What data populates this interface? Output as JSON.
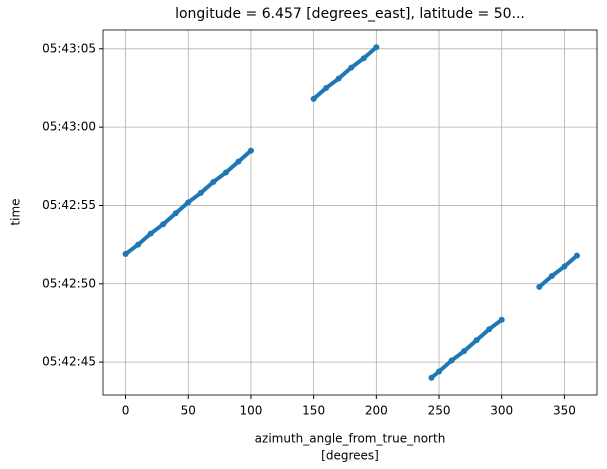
{
  "chart_data": {
    "type": "line",
    "title": "longitude = 6.457 [degrees_east], latitude = 50...",
    "xlabel": [
      "azimuth_angle_from_true_north",
      "[degrees]"
    ],
    "ylabel": "time",
    "x": [
      0,
      10,
      20,
      30,
      40,
      50,
      60,
      70,
      80,
      90,
      100,
      null,
      150,
      160,
      170,
      180,
      190,
      200,
      null,
      244,
      250,
      260,
      270,
      280,
      290,
      300,
      null,
      330,
      340,
      350,
      360
    ],
    "series": [
      {
        "color": "#1f77b4",
        "values": [
          20571.9,
          20572.5,
          20573.2,
          20573.8,
          20574.5,
          20575.2,
          20575.8,
          20576.5,
          20577.1,
          20577.8,
          20578.5,
          null,
          20581.8,
          20582.5,
          20583.1,
          20583.8,
          20584.4,
          20585.1,
          null,
          20564.0,
          20564.4,
          20565.1,
          20565.7,
          20566.4,
          20567.1,
          20567.7,
          null,
          20569.8,
          20570.5,
          20571.1,
          20571.8
        ]
      }
    ],
    "xlim": [
      -18,
      376
    ],
    "xticks": [
      0,
      50,
      100,
      150,
      200,
      250,
      300,
      350
    ],
    "ylim": [
      20562.9,
      20586.2
    ],
    "yticks": [
      {
        "value": 20565,
        "label": "05:42:45"
      },
      {
        "value": 20570,
        "label": "05:42:50"
      },
      {
        "value": 20575,
        "label": "05:42:55"
      },
      {
        "value": 20580,
        "label": "05:43:00"
      },
      {
        "value": 20585,
        "label": "05:43:05"
      }
    ],
    "grid": true
  }
}
